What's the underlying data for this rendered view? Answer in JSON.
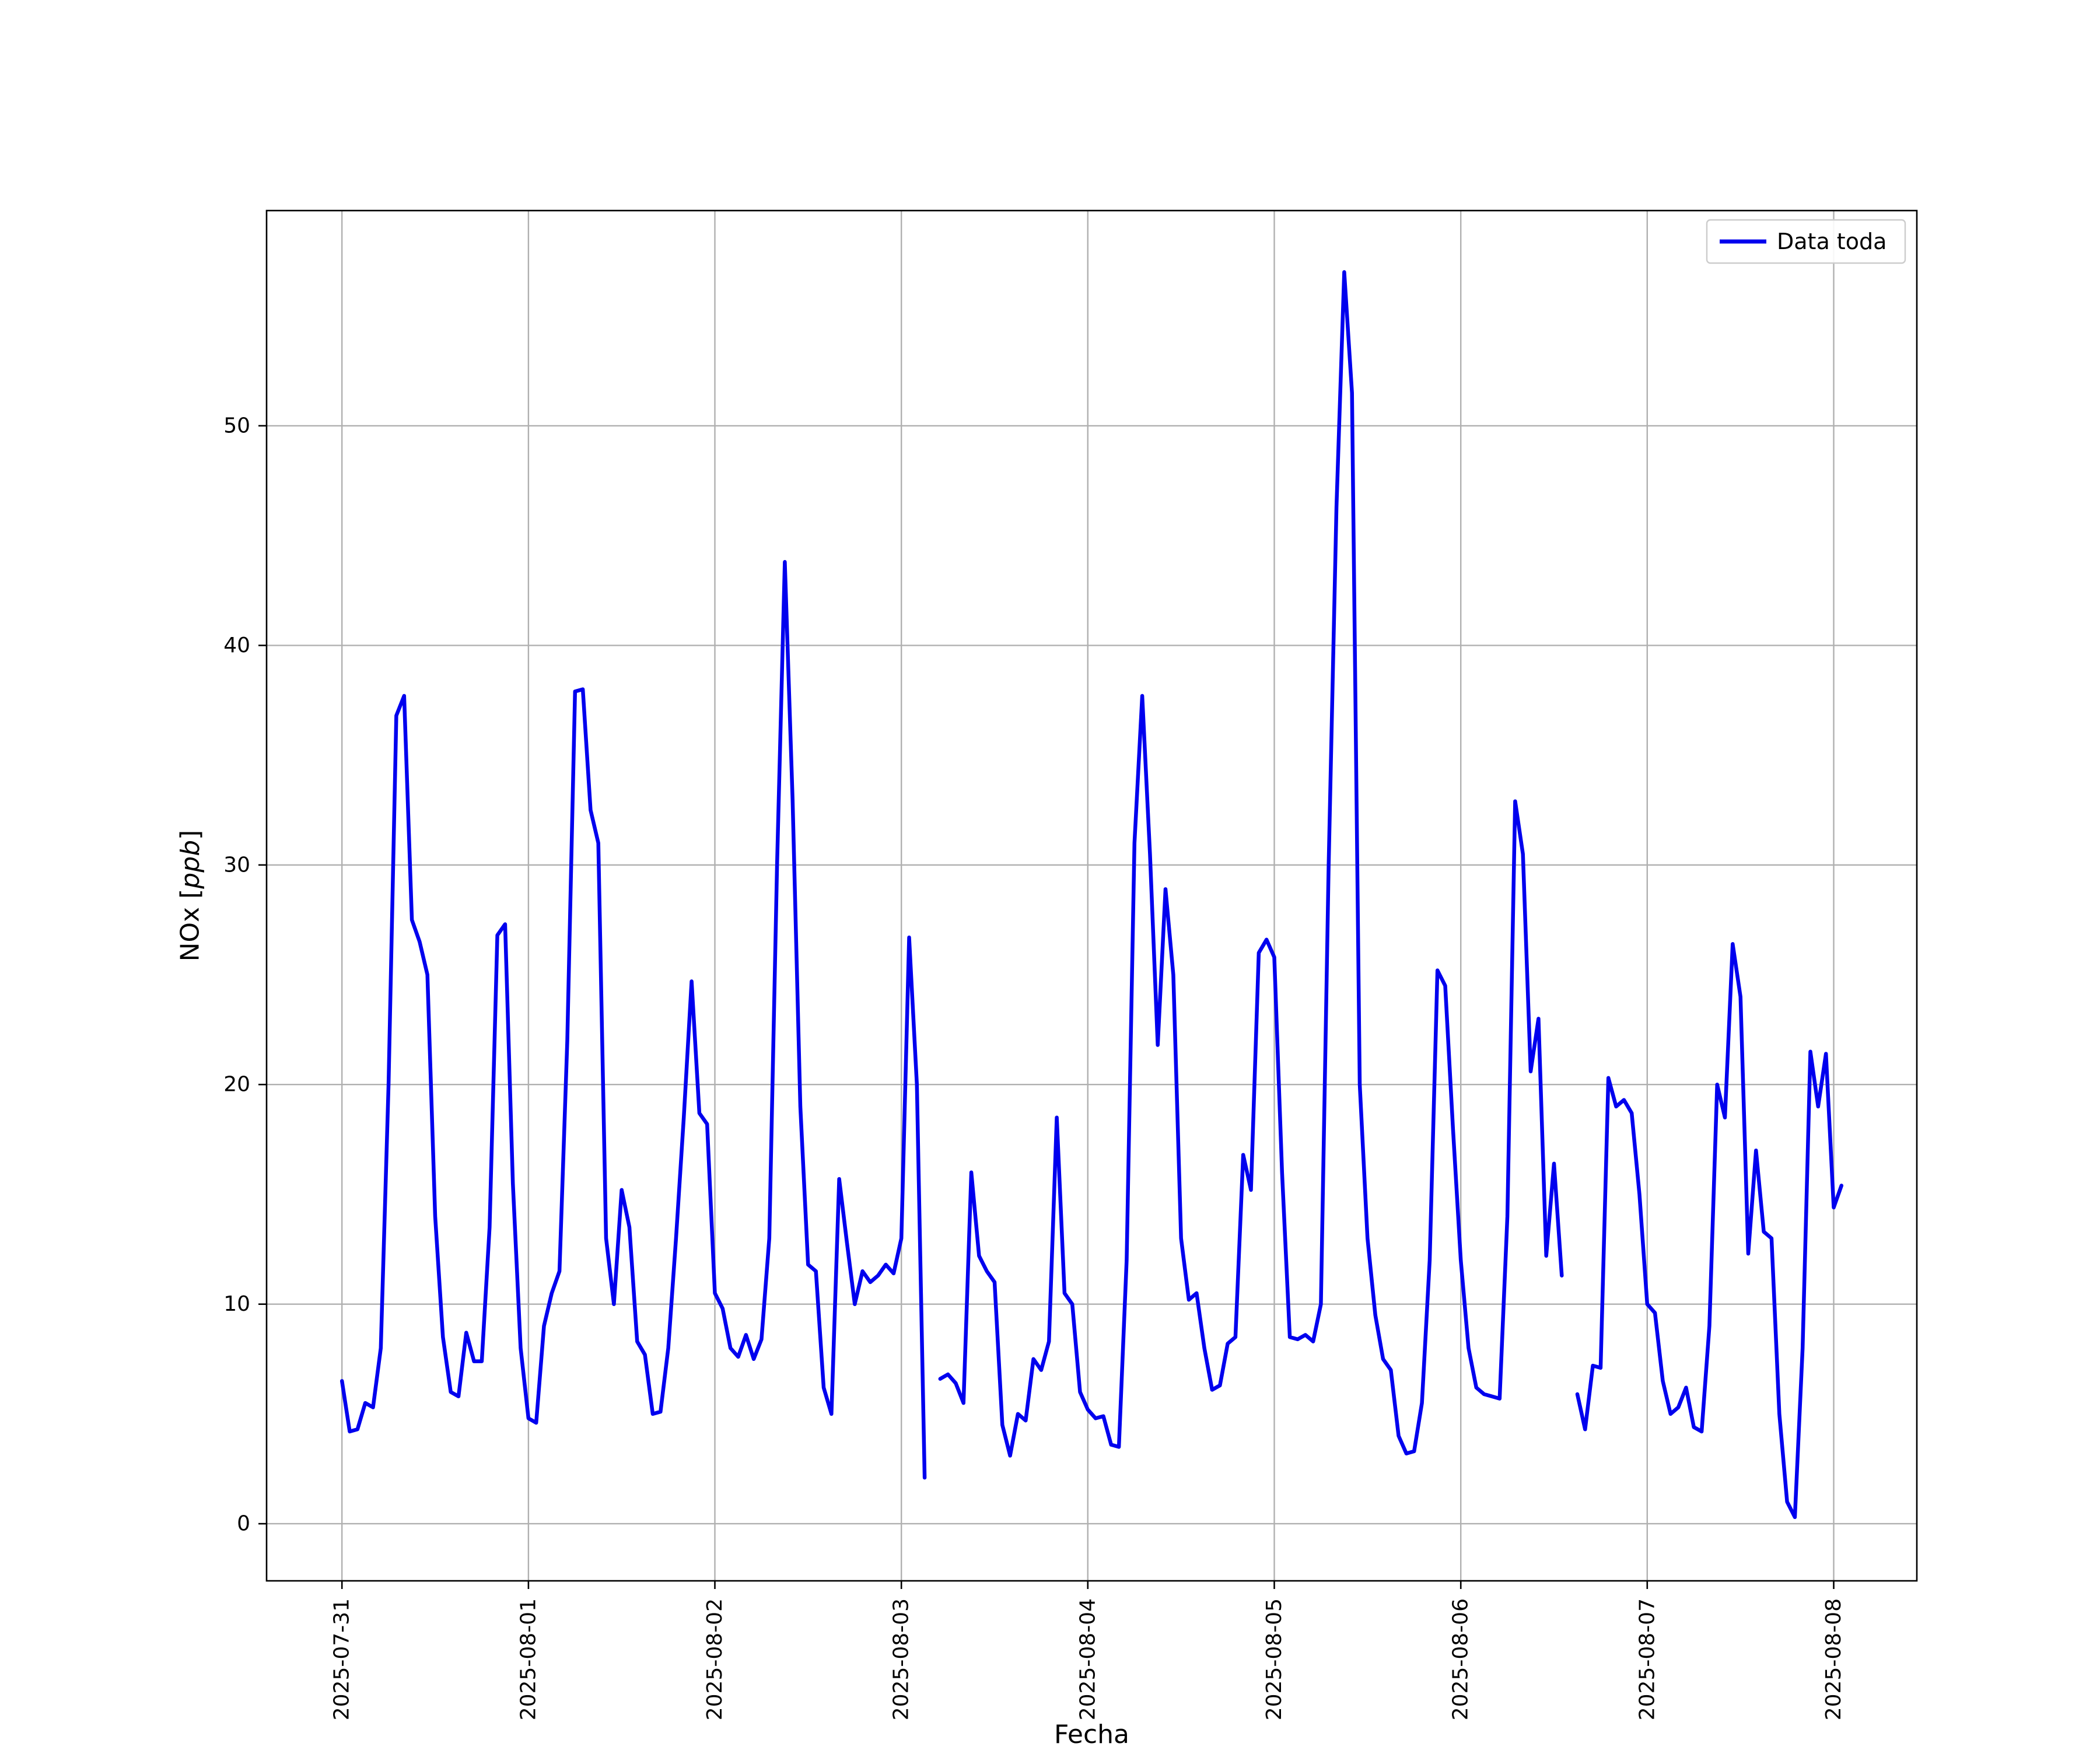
{
  "chart_data": {
    "type": "line",
    "title": "",
    "xlabel": "Fecha",
    "ylabel": "NOx [ppb]",
    "ylabel_italic_unit": "ppb",
    "legend": [
      {
        "label": "Data toda",
        "color": "#0000ee"
      }
    ],
    "legend_position": "upper right",
    "grid": true,
    "grid_color": "#b0b0b0",
    "line_color": "#0000ee",
    "axis_color": "#000000",
    "background_color": "#ffffff",
    "x_tick_labels": [
      "2025-07-31",
      "2025-08-01",
      "2025-08-02",
      "2025-08-03",
      "2025-08-04",
      "2025-08-05",
      "2025-08-06",
      "2025-08-07",
      "2025-08-08"
    ],
    "x_tick_positions_hours": [
      0,
      24,
      48,
      72,
      96,
      120,
      144,
      168,
      192
    ],
    "yticks": [
      0,
      10,
      20,
      30,
      40,
      50
    ],
    "ylim": [
      -2.6,
      59.8
    ],
    "xlim_hours": [
      -9.7,
      202.7
    ],
    "x_unit": "hours since 2025-07-31 00:00",
    "values": [
      6.5,
      4.2,
      4.3,
      5.5,
      5.3,
      8.0,
      20.0,
      36.8,
      37.7,
      27.5,
      26.5,
      25.0,
      14.0,
      8.5,
      6.0,
      5.8,
      8.7,
      7.4,
      7.4,
      13.5,
      26.8,
      27.3,
      15.5,
      8.0,
      4.8,
      4.6,
      9.0,
      10.5,
      11.5,
      22.0,
      37.9,
      38.0,
      32.5,
      31.0,
      13.0,
      10.0,
      15.2,
      13.5,
      8.3,
      7.7,
      5.0,
      5.1,
      8.0,
      13.0,
      18.5,
      24.7,
      18.7,
      18.2,
      10.5,
      9.8,
      8.0,
      7.6,
      8.6,
      7.5,
      8.4,
      13.0,
      30.0,
      43.8,
      33.0,
      19.0,
      11.8,
      11.5,
      6.2,
      5.0,
      15.7,
      12.8,
      10.0,
      11.5,
      11.0,
      11.3,
      11.8,
      11.4,
      13.0,
      26.7,
      20.0,
      2.1,
      null,
      6.6,
      6.8,
      6.4,
      5.5,
      16.0,
      12.2,
      11.5,
      11.0,
      4.5,
      3.1,
      5.0,
      4.7,
      7.5,
      7.0,
      8.3,
      18.5,
      10.5,
      10.0,
      6.0,
      5.2,
      4.8,
      4.9,
      3.6,
      3.5,
      12.0,
      31.0,
      37.7,
      30.5,
      21.8,
      28.9,
      25.0,
      13.0,
      10.2,
      10.5,
      8.0,
      6.1,
      6.3,
      8.2,
      8.5,
      16.8,
      15.2,
      26.0,
      26.6,
      25.8,
      16.0,
      8.5,
      8.4,
      8.6,
      8.3,
      10.0,
      30.0,
      46.3,
      57.0,
      51.5,
      20.0,
      13.0,
      9.5,
      7.5,
      7.0,
      4.0,
      3.2,
      3.3,
      5.5,
      12.0,
      25.2,
      24.5,
      18.0,
      12.0,
      8.0,
      6.2,
      5.9,
      5.8,
      5.7,
      14.0,
      32.9,
      30.5,
      20.6,
      23.0,
      12.2,
      16.4,
      11.3,
      null,
      5.9,
      4.3,
      7.2,
      7.1,
      20.3,
      19.0,
      19.3,
      18.7,
      15.0,
      10.0,
      9.6,
      6.5,
      5.0,
      5.3,
      6.2,
      4.4,
      4.2,
      9.0,
      20.0,
      18.5,
      26.4,
      24.0,
      12.3,
      17.0,
      13.3,
      13.0,
      5.0,
      1.0,
      0.3,
      8.0,
      21.5,
      19.0,
      21.4,
      14.4,
      15.4
    ]
  }
}
